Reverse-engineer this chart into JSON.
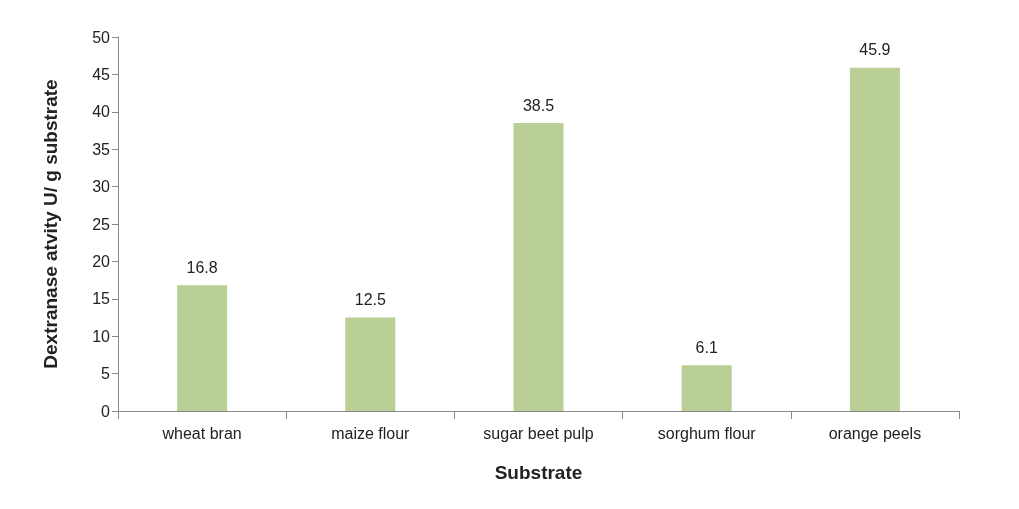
{
  "chart_data": {
    "type": "bar",
    "xlabel": "Substrate",
    "ylabel": "Dextranase atvity U/ g substrate",
    "categories": [
      "wheat bran",
      "maize flour",
      "sugar beet pulp",
      "sorghum flour",
      "orange peels"
    ],
    "values": [
      16.8,
      12.5,
      38.5,
      6.1,
      45.9
    ],
    "color": "#b9cf96",
    "ylim": [
      0,
      50
    ],
    "yticks": [
      0,
      5,
      10,
      15,
      20,
      25,
      30,
      35,
      40,
      45,
      50
    ],
    "grid": false,
    "data_labels": true
  }
}
